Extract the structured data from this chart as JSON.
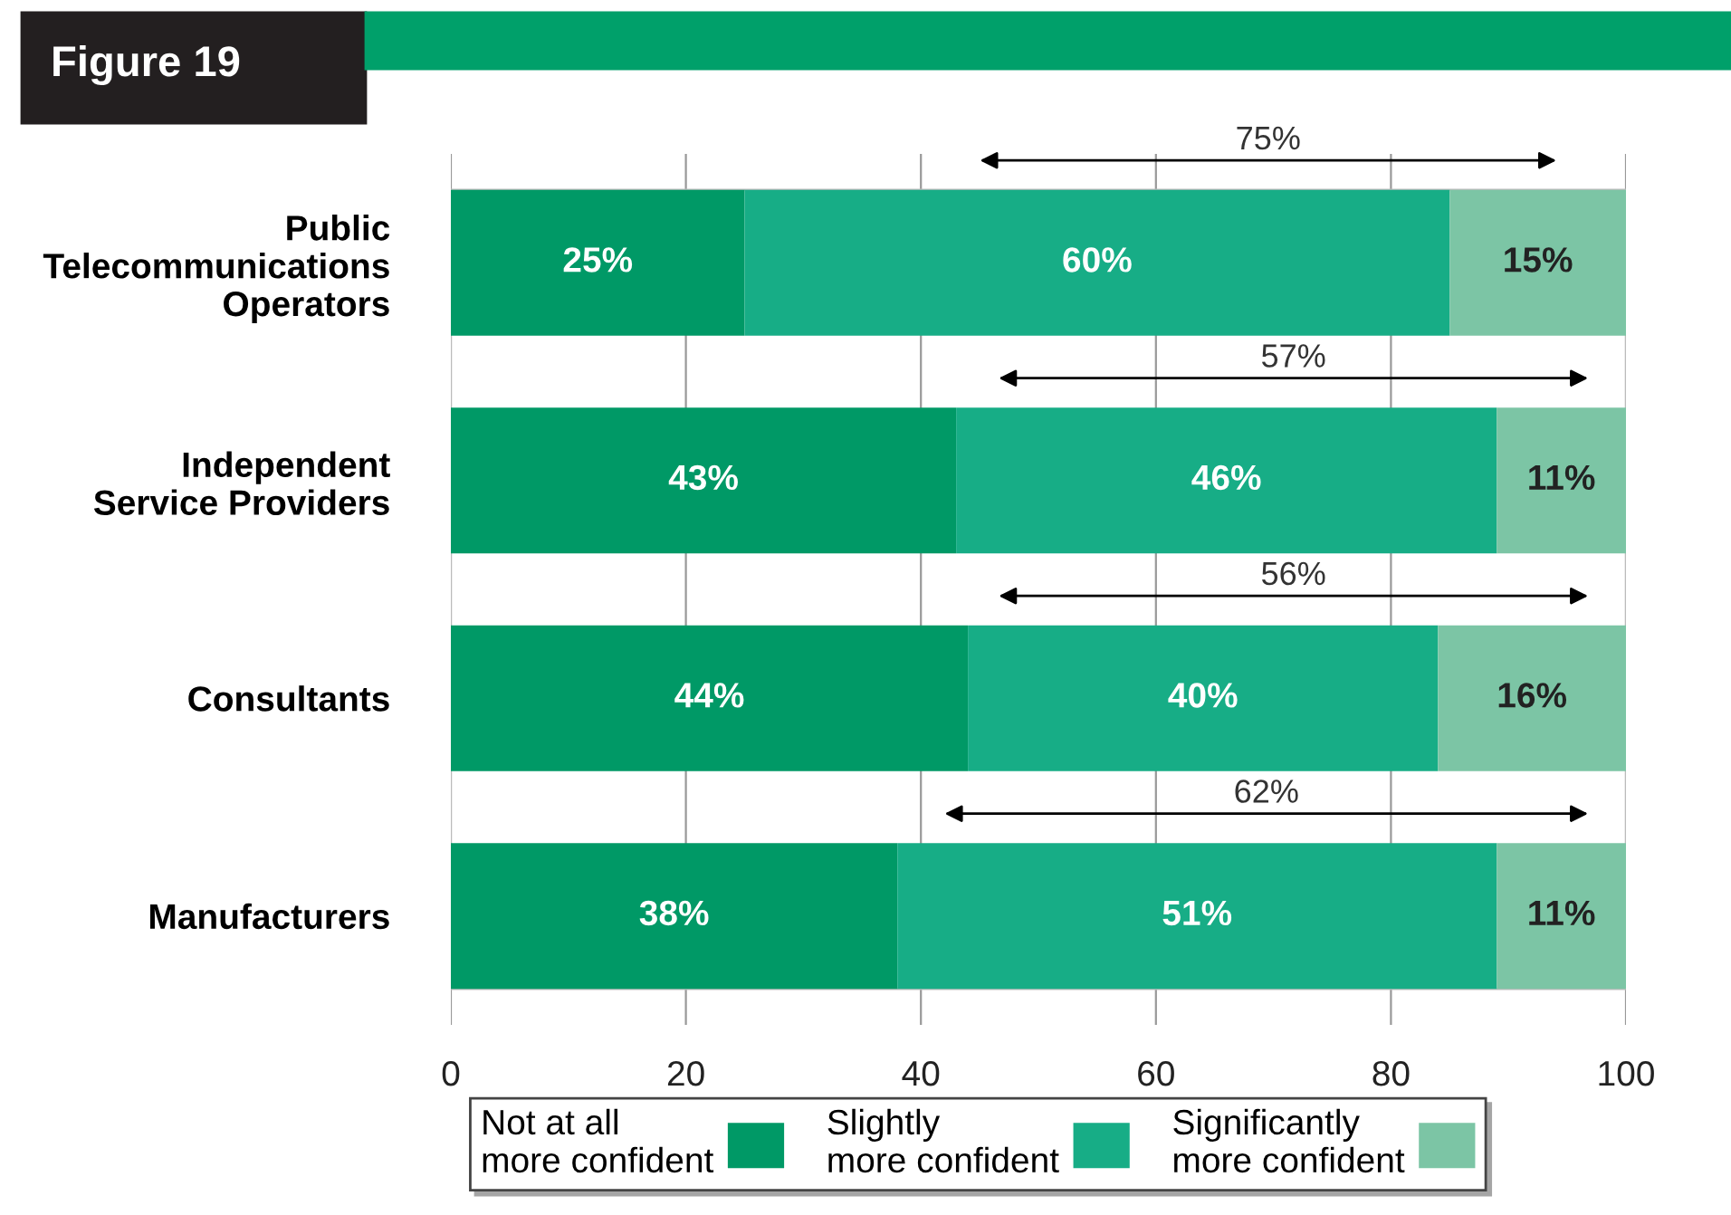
{
  "chart_data": {
    "type": "bar",
    "orientation": "horizontal",
    "stacked": true,
    "title": "Figure 19",
    "categories": [
      "Public\nTelecommunications\nOperators",
      "Independent\nService Providers",
      "Consultants",
      "Manufacturers"
    ],
    "series": [
      {
        "name": "Not at all\nmore confident",
        "color": "#009966",
        "values": [
          25,
          43,
          44,
          38
        ],
        "value_labels": [
          "25%",
          "43%",
          "44%",
          "38%"
        ]
      },
      {
        "name": "Slightly\nmore confident",
        "color": "#17ad86",
        "values": [
          60,
          46,
          40,
          51
        ],
        "value_labels": [
          "60%",
          "46%",
          "40%",
          "51%"
        ]
      },
      {
        "name": "Significantly\nmore confident",
        "color": "#7cc5a5",
        "values": [
          15,
          11,
          16,
          11
        ],
        "value_labels": [
          "15%",
          "11%",
          "16%",
          "11%"
        ]
      }
    ],
    "xlim": [
      0,
      100
    ],
    "xticks": [
      0,
      20,
      40,
      60,
      80,
      100
    ],
    "grid": "x",
    "legend": "bottom",
    "annotations": [
      "75%",
      "57%",
      "56%",
      "62%"
    ]
  }
}
